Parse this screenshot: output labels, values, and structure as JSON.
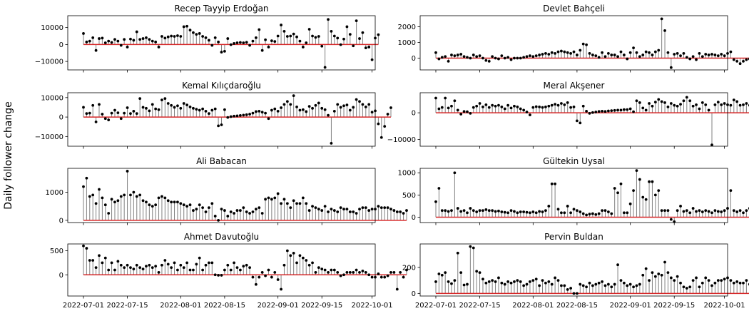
{
  "figure": {
    "ylabel": "Daily follower change"
  },
  "date_ticks": [
    "2022-07-01",
    "2022-07-15",
    "2022-08-01",
    "2022-08-15",
    "2022-09-01",
    "2022-09-15",
    "2022-10-01"
  ],
  "chart_data": [
    {
      "type": "stem",
      "title": "Recep Tayyip Erdoğan",
      "x_start": "2022-07-01",
      "xlim": [
        "2022-06-26",
        "2022-10-02"
      ],
      "ylim": [
        -15000,
        17000
      ],
      "yticks": [
        -10000,
        0,
        10000
      ],
      "values": [
        6500,
        1500,
        2000,
        4000,
        -3500,
        3500,
        3800,
        1000,
        2000,
        1200,
        3000,
        2000,
        -500,
        3000,
        -1500,
        3200,
        2500,
        7500,
        3000,
        3500,
        4000,
        3000,
        2000,
        1500,
        -1500,
        4800,
        3800,
        4500,
        5000,
        4800,
        5200,
        4800,
        10500,
        10800,
        8500,
        7000,
        6000,
        6500,
        4800,
        4000,
        2500,
        -500,
        4000,
        1500,
        -4500,
        -4000,
        3500,
        -100,
        600,
        1000,
        1200,
        1000,
        1300,
        -500,
        2000,
        4000,
        8800,
        -3500,
        2800,
        -1500,
        2200,
        1800,
        5000,
        11500,
        7800,
        4800,
        5000,
        6200,
        4500,
        2000,
        -1500,
        1000,
        9000,
        5000,
        4200,
        4800,
        -1000,
        -13500,
        14800,
        7800,
        5000,
        3800,
        -100,
        3200,
        10500,
        6000,
        -800,
        14000,
        3500,
        7000,
        -2000,
        -1500,
        -9000,
        3800,
        5800
      ]
    },
    {
      "type": "stem",
      "title": "Devlet Bahçeli",
      "x_start": "2022-07-01",
      "xlim": [
        "2022-06-26",
        "2022-10-02"
      ],
      "ylim": [
        -750,
        2700
      ],
      "yticks": [
        0,
        1000,
        2000
      ],
      "values": [
        350,
        -50,
        50,
        100,
        -200,
        200,
        150,
        200,
        250,
        100,
        50,
        0,
        200,
        100,
        150,
        0,
        -150,
        -200,
        100,
        0,
        -50,
        150,
        0,
        50,
        -100,
        0,
        0,
        0,
        50,
        100,
        150,
        100,
        150,
        200,
        250,
        300,
        250,
        350,
        300,
        400,
        450,
        400,
        350,
        300,
        400,
        200,
        500,
        900,
        850,
        300,
        200,
        150,
        50,
        350,
        100,
        300,
        200,
        200,
        100,
        400,
        200,
        -50,
        350,
        650,
        350,
        100,
        200,
        400,
        350,
        200,
        400,
        500,
        2500,
        1750,
        350,
        -600,
        250,
        300,
        150,
        300,
        50,
        -50,
        100,
        -100,
        300,
        100,
        250,
        200,
        250,
        200,
        150,
        250,
        150,
        300,
        400,
        -100,
        -200,
        -350,
        -200,
        -100,
        -50,
        -100,
        -50,
        400,
        300
      ]
    },
    {
      "type": "stem",
      "title": "Kemal Kılıçdaroğlu",
      "x_start": "2022-07-01",
      "xlim": [
        "2022-06-26",
        "2022-10-02"
      ],
      "ylim": [
        -15000,
        12500
      ],
      "yticks": [
        -10000,
        0,
        10000
      ],
      "values": [
        5000,
        1800,
        2000,
        6000,
        -2500,
        6500,
        1500,
        -800,
        -1500,
        2000,
        3500,
        2200,
        -800,
        2000,
        4800,
        1800,
        3000,
        1800,
        9500,
        5000,
        4500,
        3200,
        6500,
        4200,
        3800,
        8800,
        9500,
        7000,
        6000,
        5000,
        5800,
        4500,
        7000,
        6200,
        5200,
        4500,
        4000,
        3500,
        4200,
        3000,
        1800,
        3500,
        4200,
        -4500,
        -4000,
        3800,
        -200,
        200,
        500,
        600,
        800,
        1000,
        1200,
        1500,
        2000,
        2800,
        3000,
        2500,
        2000,
        -800,
        3500,
        4200,
        3000,
        4800,
        6500,
        8000,
        6500,
        11000,
        5200,
        3500,
        3800,
        2800,
        5500,
        4500,
        6000,
        7200,
        4500,
        3800,
        900,
        -13500,
        3000,
        6500,
        5000,
        5800,
        6200,
        3500,
        5000,
        9000,
        8000,
        6500,
        5200,
        6500,
        2500,
        3200,
        -3500,
        -10500,
        -4800,
        1500,
        4800
      ]
    },
    {
      "type": "stem",
      "title": "Meral Akşener",
      "x_start": "2022-07-01",
      "xlim": [
        "2022-06-26",
        "2022-10-02"
      ],
      "ylim": [
        -12500,
        7500
      ],
      "yticks": [
        -10000,
        0
      ],
      "values": [
        5500,
        1500,
        2000,
        5500,
        1800,
        2500,
        4500,
        1000,
        -500,
        500,
        400,
        -200,
        2000,
        2500,
        3500,
        2200,
        3000,
        2000,
        2800,
        2500,
        2800,
        2200,
        1500,
        2800,
        1800,
        2500,
        2200,
        1500,
        1000,
        300,
        -800,
        2000,
        2300,
        2200,
        2000,
        2200,
        2500,
        2800,
        3200,
        2800,
        3500,
        3000,
        3800,
        2000,
        2200,
        -3000,
        -3800,
        2500,
        600,
        -200,
        100,
        300,
        500,
        600,
        500,
        700,
        800,
        900,
        1000,
        1000,
        1200,
        1200,
        1500,
        400,
        4500,
        3800,
        1800,
        1000,
        3500,
        2500,
        4000,
        5000,
        4200,
        3800,
        2200,
        3500,
        2800,
        2500,
        3200,
        4500,
        5800,
        4500,
        2500,
        3000,
        1500,
        3800,
        3000,
        1000,
        -12000,
        3000,
        4000,
        3000,
        3500,
        3000,
        2800,
        4800,
        4200,
        2800,
        3000,
        3500,
        2800,
        -1800,
        -3500,
        -4500,
        2500,
        2800
      ]
    },
    {
      "type": "stem",
      "title": "Ali Babacan",
      "x_start": "2022-07-01",
      "xlim": [
        "2022-06-26",
        "2022-10-02"
      ],
      "ylim": [
        -80,
        1850
      ],
      "yticks": [
        0,
        1000
      ],
      "values": [
        1200,
        1500,
        850,
        900,
        600,
        1100,
        800,
        550,
        250,
        750,
        650,
        700,
        850,
        900,
        1750,
        900,
        1000,
        850,
        900,
        700,
        650,
        550,
        500,
        550,
        800,
        850,
        800,
        700,
        650,
        650,
        650,
        600,
        550,
        500,
        550,
        350,
        400,
        550,
        450,
        300,
        450,
        600,
        150,
        0,
        400,
        350,
        150,
        300,
        250,
        350,
        350,
        450,
        300,
        250,
        300,
        400,
        450,
        250,
        750,
        800,
        750,
        800,
        950,
        600,
        750,
        600,
        450,
        700,
        600,
        600,
        800,
        600,
        350,
        500,
        450,
        400,
        350,
        500,
        300,
        400,
        350,
        300,
        450,
        400,
        400,
        300,
        300,
        250,
        400,
        450,
        450,
        350,
        400,
        400,
        500,
        450,
        450,
        450,
        400,
        350,
        300,
        300,
        250,
        350
      ]
    },
    {
      "type": "stem",
      "title": "Gültekin Uysal",
      "x_start": "2022-07-01",
      "xlim": [
        "2022-06-26",
        "2022-10-02"
      ],
      "ylim": [
        -120,
        1100
      ],
      "yticks": [
        0,
        500,
        1000
      ],
      "values": [
        350,
        650,
        150,
        150,
        130,
        150,
        1000,
        200,
        130,
        150,
        100,
        200,
        150,
        120,
        150,
        150,
        170,
        150,
        150,
        130,
        140,
        120,
        110,
        100,
        150,
        130,
        100,
        120,
        120,
        110,
        100,
        120,
        100,
        130,
        120,
        150,
        250,
        750,
        750,
        180,
        100,
        100,
        250,
        100,
        180,
        150,
        120,
        80,
        50,
        70,
        80,
        60,
        80,
        150,
        150,
        120,
        80,
        650,
        550,
        750,
        100,
        100,
        300,
        600,
        1050,
        850,
        450,
        400,
        800,
        800,
        500,
        600,
        150,
        150,
        150,
        -50,
        -100,
        150,
        250,
        130,
        150,
        100,
        200,
        130,
        150,
        120,
        150,
        130,
        100,
        150,
        130,
        120,
        150,
        200,
        600,
        150,
        120,
        150,
        100,
        150,
        200,
        150
      ]
    },
    {
      "type": "stem",
      "title": "Ahmet Davutoğlu",
      "x_start": "2022-07-01",
      "xlim": [
        "2022-06-26",
        "2022-10-02"
      ],
      "ylim": [
        -440,
        640
      ],
      "yticks": [
        0,
        500
      ],
      "values": [
        600,
        550,
        300,
        300,
        150,
        400,
        250,
        350,
        100,
        250,
        100,
        280,
        200,
        150,
        200,
        150,
        120,
        200,
        150,
        120,
        180,
        200,
        150,
        180,
        50,
        200,
        300,
        220,
        150,
        250,
        100,
        200,
        150,
        250,
        100,
        100,
        220,
        350,
        100,
        200,
        250,
        250,
        0,
        -10,
        -10,
        100,
        200,
        100,
        250,
        150,
        100,
        180,
        200,
        150,
        -50,
        -200,
        -50,
        50,
        -20,
        100,
        -50,
        50,
        -100,
        -300,
        200,
        500,
        400,
        450,
        250,
        400,
        350,
        300,
        200,
        250,
        50,
        150,
        120,
        100,
        50,
        100,
        100,
        50,
        -20,
        0,
        50,
        50,
        50,
        100,
        50,
        80,
        50,
        0,
        -50,
        -50,
        20,
        -50,
        -50,
        -20,
        50,
        50,
        -300,
        50,
        -50,
        100
      ]
    },
    {
      "type": "stem",
      "title": "Pervin Buldan",
      "x_start": "2022-07-01",
      "xlim": [
        "2022-06-26",
        "2022-10-02"
      ],
      "ylim": [
        -20,
        380
      ],
      "yticks": [
        0,
        200
      ],
      "values": [
        90,
        150,
        140,
        160,
        90,
        75,
        100,
        310,
        160,
        65,
        70,
        360,
        350,
        170,
        160,
        110,
        80,
        90,
        100,
        90,
        120,
        80,
        70,
        90,
        80,
        90,
        100,
        90,
        60,
        70,
        90,
        100,
        110,
        60,
        100,
        80,
        90,
        70,
        120,
        100,
        60,
        60,
        30,
        40,
        0,
        0,
        70,
        60,
        50,
        80,
        60,
        70,
        80,
        90,
        60,
        70,
        50,
        70,
        220,
        100,
        80,
        60,
        70,
        50,
        60,
        70,
        140,
        190,
        100,
        160,
        130,
        150,
        140,
        240,
        160,
        120,
        100,
        130,
        80,
        50,
        40,
        50,
        100,
        120,
        50,
        80,
        120,
        100,
        60,
        80,
        100,
        100,
        110,
        120,
        100,
        80,
        90,
        80,
        80,
        100,
        70,
        90
      ]
    }
  ]
}
